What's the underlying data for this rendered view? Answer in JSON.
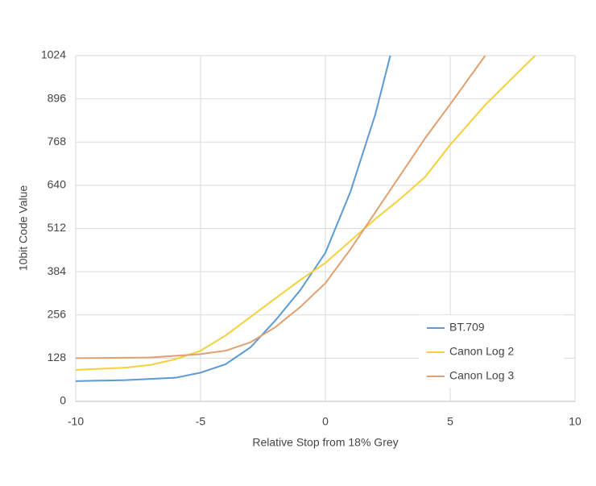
{
  "chart_data": {
    "type": "line",
    "xlabel": "Relative Stop from 18% Grey",
    "ylabel": "10bit Code Value",
    "xlim": [
      -10,
      10
    ],
    "xticks": [
      -10,
      -5,
      0,
      5,
      10
    ],
    "ylim": [
      0,
      1024
    ],
    "yticks": [
      0,
      128,
      256,
      384,
      512,
      640,
      768,
      896,
      1024
    ],
    "grid": true,
    "legend": "lower right",
    "series": [
      {
        "name": "BT.709",
        "color": "#5b9bd5",
        "x": [
          -10,
          -8,
          -6,
          -5,
          -4,
          -3,
          -2,
          -1,
          0,
          1,
          2,
          2.6
        ],
        "values": [
          60,
          63,
          70,
          85,
          110,
          160,
          240,
          330,
          440,
          620,
          850,
          1024
        ]
      },
      {
        "name": "Canon Log 2",
        "color": "#f5d03a",
        "x": [
          -10,
          -8,
          -7,
          -6,
          -5,
          -4,
          -3,
          -2,
          -1,
          0,
          1,
          2,
          3,
          4,
          5,
          6.4,
          8.4
        ],
        "values": [
          93,
          100,
          108,
          125,
          150,
          195,
          250,
          305,
          360,
          410,
          475,
          540,
          600,
          665,
          760,
          878,
          1024
        ]
      },
      {
        "name": "Canon Log 3",
        "color": "#e0a070",
        "x": [
          -10,
          -7,
          -5,
          -4,
          -3,
          -2,
          -1,
          0,
          1,
          2,
          3,
          4,
          5,
          6.4
        ],
        "values": [
          128,
          130,
          140,
          150,
          175,
          220,
          280,
          350,
          450,
          560,
          670,
          780,
          880,
          1024
        ]
      }
    ]
  }
}
